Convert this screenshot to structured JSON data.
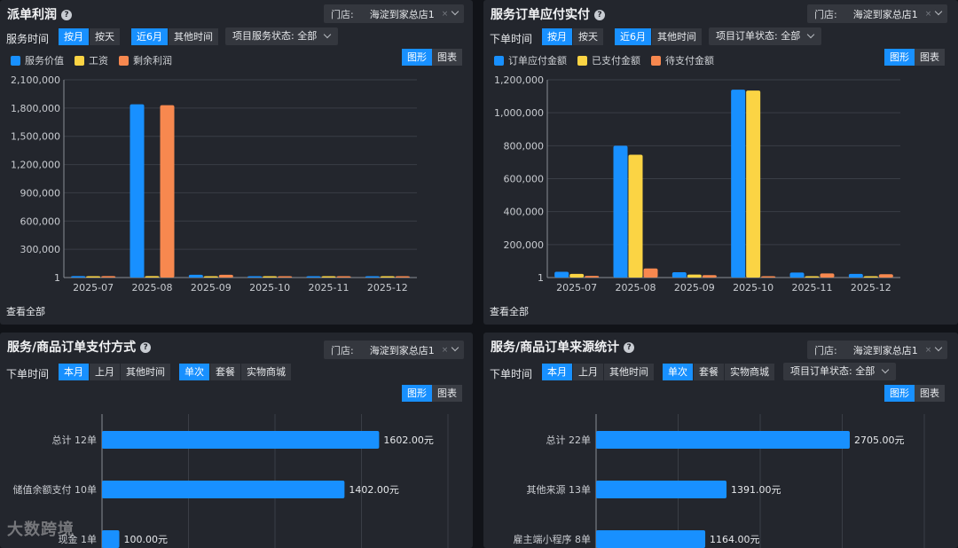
{
  "colors": {
    "blue": "#1890ff",
    "yellow": "#fbd444",
    "orange": "#f7884f",
    "panel": "#23262d",
    "button": "#34373e"
  },
  "store": {
    "label": "门店:",
    "value": "海淀到家总店1",
    "clear": "×"
  },
  "toggle": {
    "graph": "图形",
    "table": "图表"
  },
  "view_all": "查看全部",
  "watermark": "大数跨境",
  "panel1": {
    "title": "派单利润",
    "help": "?",
    "row_label": "服务时间",
    "seg_a": [
      "按月",
      "按天"
    ],
    "seg_b": [
      "近6月",
      "其他时间"
    ],
    "status": "项目服务状态: 全部",
    "legend": [
      "服务价值",
      "工资",
      "剩余利润"
    ]
  },
  "panel2": {
    "title": "服务订单应付实付",
    "help": "?",
    "row_label": "下单时间",
    "seg_a": [
      "按月",
      "按天"
    ],
    "seg_b": [
      "近6月",
      "其他时间"
    ],
    "status": "项目订单状态: 全部",
    "legend": [
      "订单应付金额",
      "已支付金额",
      "待支付金额"
    ]
  },
  "panel3": {
    "title": "服务/商品订单支付方式",
    "help": "?",
    "row_label": "下单时间",
    "seg_a": [
      "本月",
      "上月",
      "其他时间"
    ],
    "seg_b": [
      "单次",
      "套餐",
      "实物商城"
    ]
  },
  "panel4": {
    "title": "服务/商品订单来源统计",
    "help": "?",
    "row_label": "下单时间",
    "seg_a": [
      "本月",
      "上月",
      "其他时间"
    ],
    "seg_b": [
      "单次",
      "套餐",
      "实物商城"
    ],
    "status": "项目订单状态: 全部"
  },
  "chart_data": [
    {
      "type": "bar",
      "categories": [
        "2025-07",
        "2025-08",
        "2025-09",
        "2025-10",
        "2025-11",
        "2025-12"
      ],
      "series": [
        {
          "name": "服务价值",
          "values": [
            15000,
            1840000,
            30000,
            1,
            10000,
            10000
          ]
        },
        {
          "name": "工资",
          "values": [
            1,
            15000,
            1,
            1,
            1,
            1
          ]
        },
        {
          "name": "剩余利润",
          "values": [
            15000,
            1830000,
            30000,
            1,
            10000,
            10000
          ]
        }
      ],
      "yticks": [
        "1",
        "300,000",
        "600,000",
        "900,000",
        "1,200,000",
        "1,500,000",
        "1,800,000",
        "2,100,000"
      ],
      "ylim": [
        0,
        2100000
      ]
    },
    {
      "type": "bar",
      "categories": [
        "2025-07",
        "2025-08",
        "2025-09",
        "2025-10",
        "2025-11",
        "2025-12"
      ],
      "series": [
        {
          "name": "订单应付金额",
          "values": [
            35000,
            800000,
            32000,
            1140000,
            30000,
            22000
          ]
        },
        {
          "name": "已支付金额",
          "values": [
            22000,
            745000,
            18000,
            1135000,
            5000,
            1
          ]
        },
        {
          "name": "待支付金额",
          "values": [
            10000,
            55000,
            15000,
            5000,
            25000,
            20000
          ]
        }
      ],
      "yticks": [
        "1",
        "200,000",
        "400,000",
        "600,000",
        "800,000",
        "1,000,000",
        "1,200,000"
      ],
      "ylim": [
        0,
        1200000
      ]
    },
    {
      "type": "bar",
      "orientation": "horizontal",
      "categories": [
        "总计 12单",
        "储值余额支付 10单",
        "现金 1单"
      ],
      "values": [
        1602,
        1402,
        100
      ],
      "value_labels": [
        "1602.00元",
        "1402.00元",
        "100.00元"
      ],
      "xlim": [
        0,
        2000
      ]
    },
    {
      "type": "bar",
      "orientation": "horizontal",
      "categories": [
        "总计 22单",
        "其他来源 13单",
        "雇主端小程序 8单"
      ],
      "values": [
        2705,
        1391,
        1164
      ],
      "value_labels": [
        "2705.00元",
        "1391.00元",
        "1164.00元"
      ],
      "xlim": [
        0,
        3500
      ]
    }
  ]
}
